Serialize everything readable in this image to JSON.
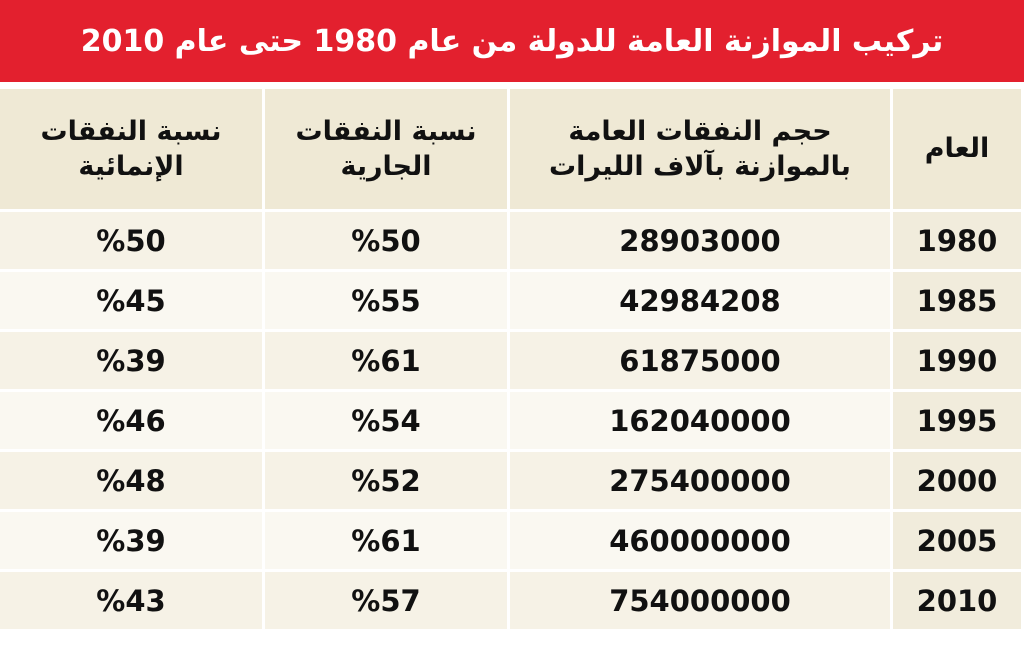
{
  "header": {
    "title": "تركيب الموازنة العامة للدولة من عام 1980 حتى عام 2010"
  },
  "table": {
    "headers": [
      "العام",
      "حجم النفقات العامة\nبالموازنة بآلاف الليرات",
      "نسبة النفقات\nالجارية",
      "نسبة النفقات\nالإنمائية"
    ],
    "rows": [
      [
        "1980",
        "28903000",
        "%50",
        "%50"
      ],
      [
        "1985",
        "42984208",
        "%55",
        "%45"
      ],
      [
        "1990",
        "61875000",
        "%61",
        "%39"
      ],
      [
        "1995",
        "162040000",
        "%54",
        "%46"
      ],
      [
        "2000",
        "275400000",
        "%52",
        "%48"
      ],
      [
        "2005",
        "460000000",
        "%61",
        "%39"
      ],
      [
        "2010",
        "754000000",
        "%57",
        "%43"
      ]
    ]
  }
}
